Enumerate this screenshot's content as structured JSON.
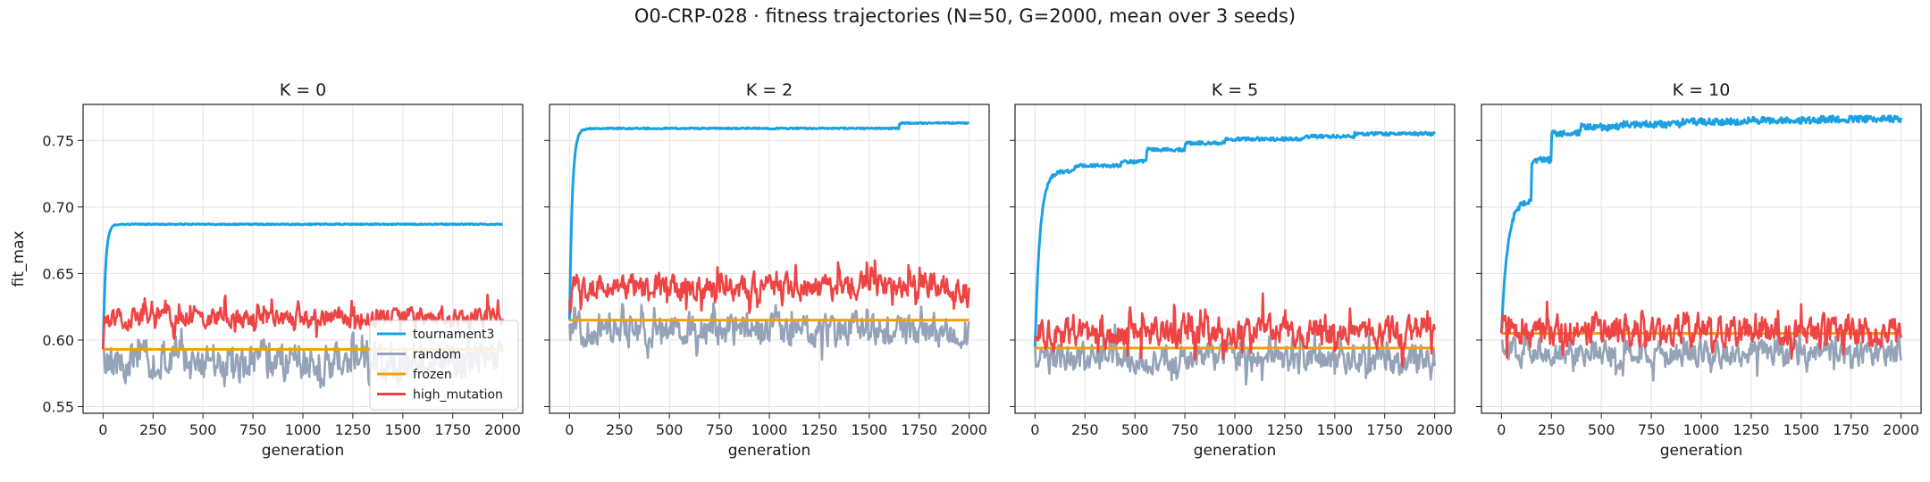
{
  "figure": {
    "suptitle": "O0-CRP-028 · fitness trajectories (N=50, G=2000, mean over 3 seeds)"
  },
  "chart_data": [
    {
      "type": "line",
      "title": "K = 0",
      "xlabel": "generation",
      "ylabel": "fit_max",
      "xlim": [
        -100,
        2100
      ],
      "ylim": [
        0.545,
        0.777
      ],
      "xticks": [
        0,
        250,
        500,
        750,
        1000,
        1250,
        1500,
        1750,
        2000
      ],
      "yticks": [
        0.55,
        0.6,
        0.65,
        0.7,
        0.75
      ],
      "ytick_labels": [
        "0.55",
        "0.60",
        "0.65",
        "0.70",
        "0.75"
      ],
      "grid": true,
      "legend": "lower-right",
      "series": [
        {
          "name": "tournament3",
          "color": "#1ba1e2",
          "kind": "saturating",
          "y0": 0.593,
          "plateau": 0.687,
          "tau": 12,
          "steps": [],
          "noise": 0.0004,
          "final": 0.687
        },
        {
          "name": "random",
          "color": "#94a3b8",
          "kind": "noisy",
          "mean": 0.585,
          "amp": 0.012,
          "spikes": 0.008,
          "y0": 0.595
        },
        {
          "name": "frozen",
          "color": "#f59e0b",
          "kind": "flat",
          "value": 0.593
        },
        {
          "name": "high_mutation",
          "color": "#ef4444",
          "kind": "noisy",
          "mean": 0.617,
          "amp": 0.006,
          "spikes": 0.009,
          "y0": 0.593
        }
      ]
    },
    {
      "type": "line",
      "title": "K = 2",
      "xlabel": "generation",
      "ylabel": "",
      "xlim": [
        -100,
        2100
      ],
      "ylim": [
        0.545,
        0.777
      ],
      "xticks": [
        0,
        250,
        500,
        750,
        1000,
        1250,
        1500,
        1750,
        2000
      ],
      "yticks": [
        0.55,
        0.6,
        0.65,
        0.7,
        0.75
      ],
      "ytick_labels": [
        "",
        "",
        "",
        "",
        ""
      ],
      "grid": true,
      "legend": "none",
      "series": [
        {
          "name": "tournament3",
          "color": "#1ba1e2",
          "kind": "saturating",
          "y0": 0.615,
          "plateau": 0.759,
          "tau": 14,
          "steps": [
            [
              1650,
              0.763
            ]
          ],
          "noise": 0.0005,
          "final": 0.763
        },
        {
          "name": "random",
          "color": "#94a3b8",
          "kind": "noisy",
          "mean": 0.607,
          "amp": 0.01,
          "spikes": 0.012,
          "y0": 0.612
        },
        {
          "name": "frozen",
          "color": "#f59e0b",
          "kind": "flat",
          "value": 0.615
        },
        {
          "name": "high_mutation",
          "color": "#ef4444",
          "kind": "noisy",
          "mean": 0.64,
          "amp": 0.008,
          "spikes": 0.012,
          "y0": 0.63
        }
      ]
    },
    {
      "type": "line",
      "title": "K = 5",
      "xlabel": "generation",
      "ylabel": "",
      "xlim": [
        -100,
        2100
      ],
      "ylim": [
        0.545,
        0.777
      ],
      "xticks": [
        0,
        250,
        500,
        750,
        1000,
        1250,
        1500,
        1750,
        2000
      ],
      "yticks": [
        0.55,
        0.6,
        0.65,
        0.7,
        0.75
      ],
      "ytick_labels": [
        "",
        "",
        "",
        "",
        ""
      ],
      "grid": true,
      "legend": "none",
      "series": [
        {
          "name": "tournament3",
          "color": "#1ba1e2",
          "kind": "saturating",
          "y0": 0.595,
          "plateau": 0.727,
          "tau": 25,
          "steps": [
            [
              200,
              0.731
            ],
            [
              430,
              0.734
            ],
            [
              560,
              0.743
            ],
            [
              750,
              0.748
            ],
            [
              950,
              0.751
            ],
            [
              1350,
              0.753
            ],
            [
              1600,
              0.755
            ]
          ],
          "noise": 0.0012,
          "final": 0.755
        },
        {
          "name": "random",
          "color": "#94a3b8",
          "kind": "noisy",
          "mean": 0.586,
          "amp": 0.009,
          "spikes": 0.012,
          "y0": 0.595
        },
        {
          "name": "frozen",
          "color": "#f59e0b",
          "kind": "flat",
          "value": 0.594
        },
        {
          "name": "high_mutation",
          "color": "#ef4444",
          "kind": "noisy",
          "mean": 0.606,
          "amp": 0.009,
          "spikes": 0.014,
          "y0": 0.6
        }
      ]
    },
    {
      "type": "line",
      "title": "K = 10",
      "xlabel": "generation",
      "ylabel": "",
      "xlim": [
        -100,
        2100
      ],
      "ylim": [
        0.545,
        0.777
      ],
      "xticks": [
        0,
        250,
        500,
        750,
        1000,
        1250,
        1500,
        1750,
        2000
      ],
      "yticks": [
        0.55,
        0.6,
        0.65,
        0.7,
        0.75
      ],
      "ytick_labels": [
        "",
        "",
        "",
        "",
        ""
      ],
      "grid": true,
      "legend": "none",
      "series": [
        {
          "name": "tournament3",
          "color": "#1ba1e2",
          "kind": "saturating",
          "y0": 0.605,
          "plateau": 0.705,
          "tau": 30,
          "steps": [
            [
              150,
              0.735
            ],
            [
              250,
              0.755
            ],
            [
              400,
              0.76
            ],
            [
              600,
              0.762
            ],
            [
              900,
              0.764
            ],
            [
              1200,
              0.765
            ],
            [
              1600,
              0.766
            ]
          ],
          "noise": 0.0025,
          "final": 0.767
        },
        {
          "name": "random",
          "color": "#94a3b8",
          "kind": "noisy",
          "mean": 0.59,
          "amp": 0.008,
          "spikes": 0.01,
          "y0": 0.6
        },
        {
          "name": "frozen",
          "color": "#f59e0b",
          "kind": "flat",
          "value": 0.605
        },
        {
          "name": "high_mutation",
          "color": "#ef4444",
          "kind": "noisy",
          "mean": 0.607,
          "amp": 0.009,
          "spikes": 0.012,
          "y0": 0.605
        }
      ]
    }
  ]
}
